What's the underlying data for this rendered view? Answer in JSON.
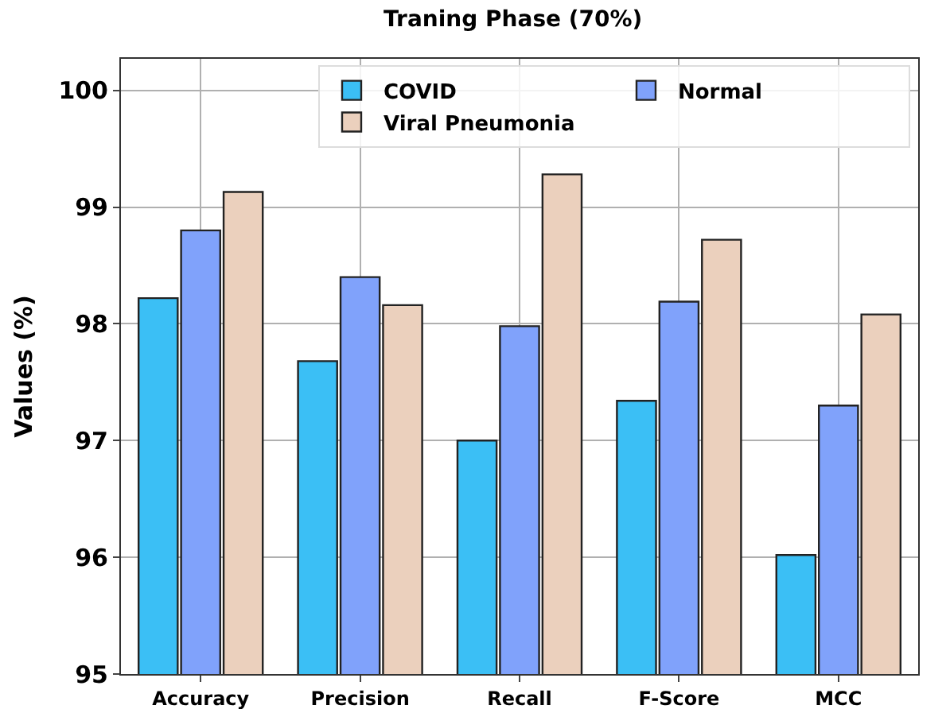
{
  "chart_data": {
    "type": "bar",
    "title": "Traning Phase (70%)",
    "ylabel": "Values (%)",
    "categories": [
      "Accuracy",
      "Precision",
      "Recall",
      "F-Score",
      "MCC"
    ],
    "series": [
      {
        "name": "COVID",
        "color": "#3bbff5",
        "values": [
          98.22,
          97.68,
          97.0,
          97.34,
          96.02
        ]
      },
      {
        "name": "Normal",
        "color": "#80a2fb",
        "values": [
          98.8,
          98.4,
          97.98,
          98.19,
          97.3
        ]
      },
      {
        "name": "Viral Pneumonia",
        "color": "#ebd0bd",
        "values": [
          99.13,
          98.16,
          99.28,
          98.72,
          98.08
        ]
      }
    ],
    "ylim": [
      95,
      100.27
    ],
    "yticks": [
      95,
      96,
      97,
      98,
      99,
      100
    ],
    "grid": true,
    "legend": "top right"
  }
}
